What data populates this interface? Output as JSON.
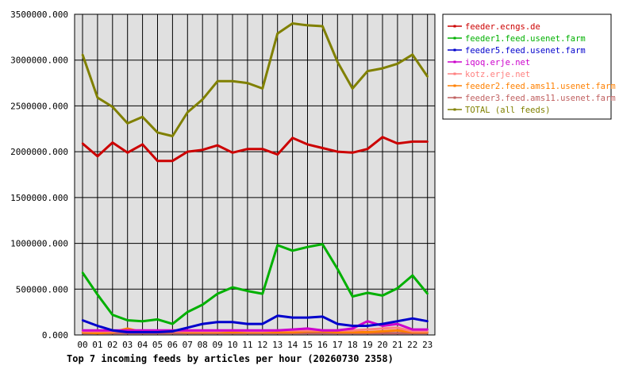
{
  "chart_data": {
    "type": "line",
    "title": "Top 7 incoming feeds by articles per hour (20260730 2358)",
    "xlabel": "",
    "ylabel": "",
    "categories": [
      "00",
      "01",
      "02",
      "03",
      "04",
      "05",
      "06",
      "07",
      "08",
      "09",
      "10",
      "11",
      "12",
      "13",
      "14",
      "15",
      "16",
      "17",
      "18",
      "19",
      "20",
      "21",
      "22",
      "23"
    ],
    "y_ticks": [
      "0.000",
      "500000.000",
      "1000000.000",
      "1500000.000",
      "2000000.000",
      "2500000.000",
      "3000000.000",
      "3500000.000"
    ],
    "ylim": [
      0,
      3500000
    ],
    "grid": true,
    "legend_position": "right",
    "plot_background": "#e0e0e0",
    "series": [
      {
        "name": "feeder.ecngs.de",
        "color": "#cc0000",
        "values": [
          2090000,
          1950000,
          2100000,
          1990000,
          2080000,
          1900000,
          1900000,
          2000000,
          2020000,
          2070000,
          1990000,
          2030000,
          2030000,
          1970000,
          2150000,
          2080000,
          2040000,
          2000000,
          1990000,
          2030000,
          2160000,
          2090000,
          2110000,
          2110000
        ]
      },
      {
        "name": "feeder1.feed.usenet.farm",
        "color": "#00b000",
        "values": [
          680000,
          440000,
          220000,
          160000,
          150000,
          170000,
          120000,
          250000,
          330000,
          450000,
          520000,
          480000,
          450000,
          980000,
          920000,
          960000,
          990000,
          720000,
          420000,
          460000,
          430000,
          510000,
          650000,
          450000
        ]
      },
      {
        "name": "feeder5.feed.usenet.farm",
        "color": "#0000cc",
        "values": [
          160000,
          100000,
          50000,
          30000,
          30000,
          30000,
          40000,
          80000,
          120000,
          140000,
          140000,
          120000,
          120000,
          210000,
          190000,
          190000,
          200000,
          120000,
          100000,
          100000,
          120000,
          150000,
          180000,
          150000
        ]
      },
      {
        "name": "iqoq.erje.net",
        "color": "#cc00cc",
        "values": [
          50000,
          50000,
          50000,
          50000,
          50000,
          50000,
          50000,
          50000,
          50000,
          50000,
          50000,
          50000,
          50000,
          50000,
          60000,
          70000,
          50000,
          50000,
          70000,
          150000,
          100000,
          120000,
          60000,
          60000
        ]
      },
      {
        "name": "kotz.erje.net",
        "color": "#ff8080",
        "values": [
          40000,
          40000,
          40000,
          40000,
          40000,
          40000,
          40000,
          40000,
          40000,
          40000,
          50000,
          40000,
          40000,
          50000,
          50000,
          50000,
          50000,
          50000,
          50000,
          60000,
          70000,
          80000,
          40000,
          40000
        ]
      },
      {
        "name": "feeder2.feed.ams11.usenet.farm",
        "color": "#ff8000",
        "values": [
          30000,
          20000,
          30000,
          70000,
          30000,
          30000,
          40000,
          30000,
          30000,
          30000,
          30000,
          30000,
          30000,
          30000,
          30000,
          40000,
          40000,
          30000,
          30000,
          30000,
          40000,
          50000,
          30000,
          30000
        ]
      },
      {
        "name": "feeder3.feed.ams11.usenet.farm",
        "color": "#c06060",
        "values": [
          20000,
          20000,
          20000,
          20000,
          20000,
          20000,
          20000,
          20000,
          20000,
          20000,
          20000,
          20000,
          20000,
          20000,
          20000,
          20000,
          20000,
          20000,
          20000,
          20000,
          20000,
          20000,
          20000,
          20000
        ]
      },
      {
        "name": "TOTAL (all feeds)",
        "color": "#808000",
        "values": [
          3060000,
          2590000,
          2490000,
          2310000,
          2380000,
          2210000,
          2170000,
          2430000,
          2570000,
          2770000,
          2770000,
          2750000,
          2690000,
          3290000,
          3400000,
          3380000,
          3370000,
          2980000,
          2690000,
          2880000,
          2910000,
          2960000,
          3060000,
          2820000
        ]
      }
    ]
  }
}
